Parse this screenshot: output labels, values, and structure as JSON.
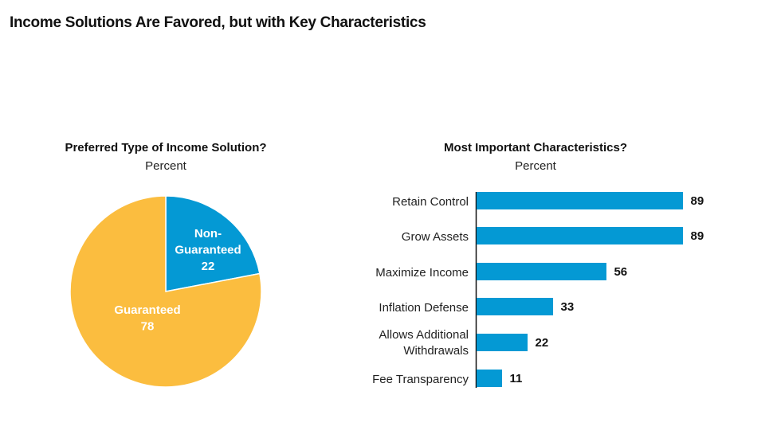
{
  "title": "Income Solutions Are Favored, but with Key Characteristics",
  "chart_data": [
    {
      "type": "pie",
      "title": "Preferred Type of Income Solution?",
      "subtitle": "Percent",
      "slices": [
        {
          "label": "Non-Guaranteed",
          "value": 22,
          "color": "#0499d4"
        },
        {
          "label": "Guaranteed",
          "value": 78,
          "color": "#fbbd3f"
        }
      ],
      "slice_label_lines": [
        [
          "Non-",
          "Guaranteed",
          "22"
        ],
        [
          "Guaranteed",
          "78"
        ]
      ]
    },
    {
      "type": "bar",
      "orientation": "horizontal",
      "title": "Most Important Characteristics?",
      "subtitle": "Percent",
      "categories": [
        "Retain Control",
        "Grow Assets",
        "Maximize Income",
        "Inflation Defense",
        "Allows Additional Withdrawals",
        "Fee Transparency"
      ],
      "category_label_lines": [
        [
          "Retain Control"
        ],
        [
          "Grow Assets"
        ],
        [
          "Maximize Income"
        ],
        [
          "Inflation Defense"
        ],
        [
          "Allows Additional",
          "Withdrawals"
        ],
        [
          "Fee Transparency"
        ]
      ],
      "values": [
        89,
        89,
        56,
        33,
        22,
        11
      ],
      "color": "#0499d4"
    }
  ]
}
